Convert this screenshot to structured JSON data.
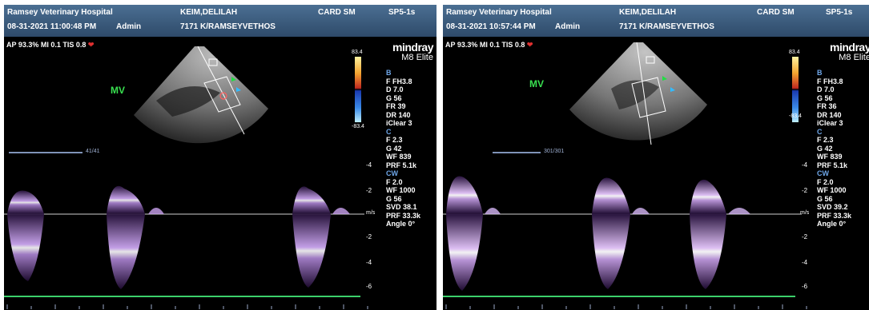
{
  "panels": [
    {
      "hospital": "Ramsey Veterinary Hospital",
      "datetime": "08-31-2021  11:00:48 PM",
      "operator": "Admin",
      "patient": "KEIM,DELILAH",
      "patient_id": "7171 K/RAMSEYVETHOS",
      "exam_type": "CARD SM",
      "probe": "SP5-1s",
      "status": "AP 93.3%  MI 0.1  TIS 0.8",
      "brand_name": "mindray",
      "model": "M8 Elite",
      "view_label": "MV",
      "color_scale_top": "83.4",
      "color_scale_bottom": "-83.4",
      "b_mode": {
        "header": "B",
        "lines": [
          "F FH3.8",
          "D 7.0",
          "G 56",
          "FR 39",
          "DR 140",
          "iClear 3"
        ]
      },
      "color_mode": {
        "header": "C",
        "lines": [
          "F 2.3",
          "G 42",
          "WF 839",
          "PRF 5.1k"
        ]
      },
      "cw_mode": {
        "header": "CW",
        "lines": [
          "F 2.0",
          "WF 1000",
          "G 56",
          "SVD 38.1",
          "PRF 33.3k",
          "Angle 0°"
        ]
      },
      "cine_frame": "41/41",
      "velocity_unit": "m/s",
      "velocity_scale": [
        "-4",
        "-2",
        "-2",
        "-4",
        "-6"
      ]
    },
    {
      "hospital": "Ramsey Veterinary Hospital",
      "datetime": "08-31-2021  10:57:44 PM",
      "operator": "Admin",
      "patient": "KEIM,DELILAH",
      "patient_id": "7171 K/RAMSEYVETHOS",
      "exam_type": "CARD SM",
      "probe": "SP5-1s",
      "status": "AP 93.3%  MI 0.1  TIS 0.8",
      "brand_name": "mindray",
      "model": "M8 Elite",
      "view_label": "MV",
      "color_scale_top": "83.4",
      "color_scale_bottom": "-83.4",
      "b_mode": {
        "header": "B",
        "lines": [
          "F FH3.8",
          "D 7.0",
          "G 56",
          "FR 36",
          "DR 140",
          "iClear 3"
        ]
      },
      "color_mode": {
        "header": "C",
        "lines": [
          "F 2.3",
          "G 42",
          "WF 839",
          "PRF 5.1k"
        ]
      },
      "cw_mode": {
        "header": "CW",
        "lines": [
          "F 2.0",
          "WF 1000",
          "G 56",
          "SVD 39.2",
          "PRF 33.3k",
          "Angle 0°"
        ]
      },
      "cine_frame": "301/301",
      "velocity_unit": "m/s",
      "velocity_scale": [
        "-4",
        "-2",
        "-2",
        "-4",
        "-6"
      ]
    }
  ]
}
